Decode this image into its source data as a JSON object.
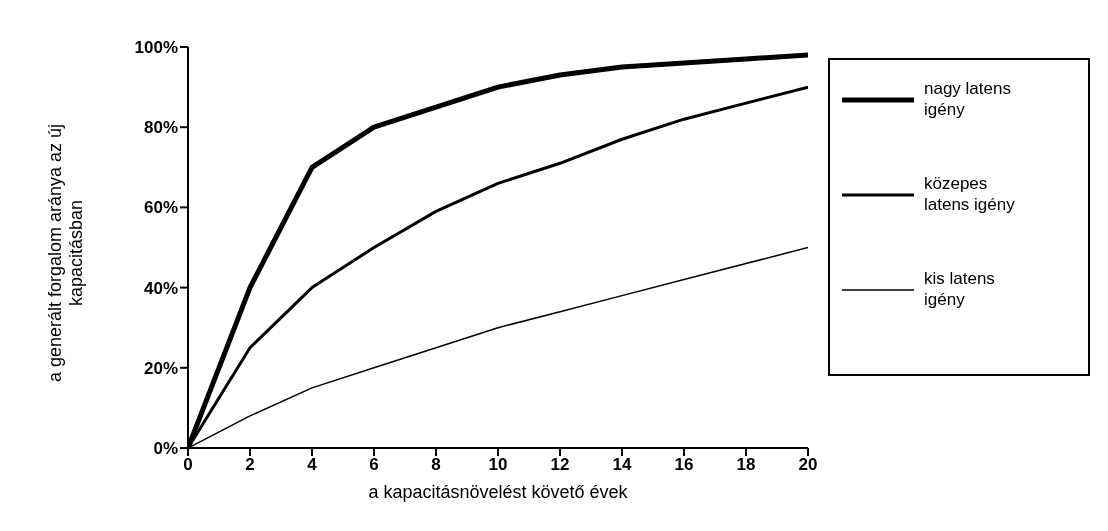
{
  "chart_data": {
    "type": "line",
    "xlabel": "a kapacitásnövelést követő évek",
    "ylabel": "a generált forgalom aránya az új kapacitásban",
    "x": [
      0,
      2,
      4,
      6,
      8,
      10,
      12,
      14,
      16,
      18,
      20
    ],
    "series": [
      {
        "name": "nagy latens igény",
        "color": "#000000",
        "values": [
          0,
          40,
          70,
          80,
          85,
          90,
          93,
          95,
          96,
          97,
          98
        ]
      },
      {
        "name": "közepes latens igény",
        "color": "#000000",
        "values": [
          0,
          25,
          40,
          50,
          59,
          66,
          71,
          77,
          82,
          86,
          90
        ]
      },
      {
        "name": "kis latens igény",
        "color": "#000000",
        "values": [
          0,
          8,
          15,
          20,
          25,
          30,
          34,
          38,
          42,
          46,
          50
        ]
      }
    ],
    "xlim": [
      0,
      20
    ],
    "xticks": [
      0,
      2,
      4,
      6,
      8,
      10,
      12,
      14,
      16,
      18,
      20
    ],
    "ylim": [
      0,
      100
    ],
    "yticks": [
      {
        "value": 0,
        "label": "0%"
      },
      {
        "value": 20,
        "label": "20%"
      },
      {
        "value": 40,
        "label": "40%"
      },
      {
        "value": 60,
        "label": "60%"
      },
      {
        "value": 80,
        "label": "80%"
      },
      {
        "value": 100,
        "label": "100%"
      }
    ],
    "grid": false,
    "legend": "right",
    "marker": "none",
    "line_style": "solid"
  }
}
